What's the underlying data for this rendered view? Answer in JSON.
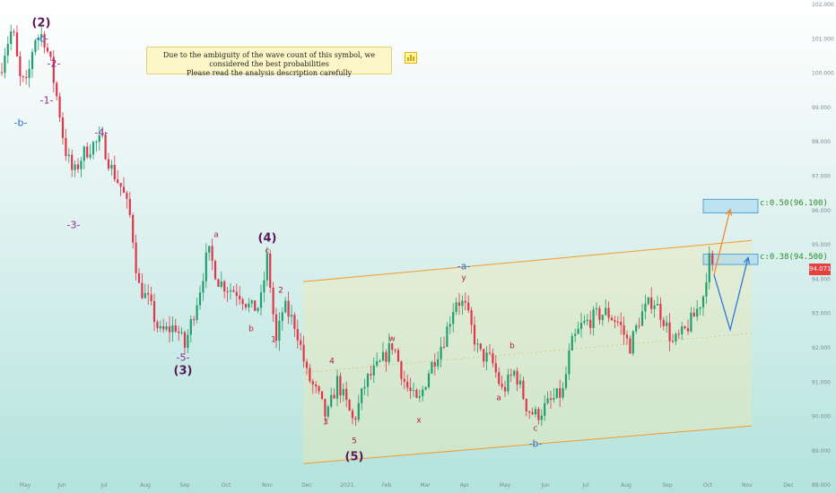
{
  "note": {
    "line1": "Due to the ambiguity of the wave count of this symbol, we considered the best probabilities",
    "line2": "Please read the analysis description carefully"
  },
  "targets": {
    "t1": "c:0.50(96.100)",
    "t2": "c:0.38(94.500)"
  },
  "last_price": "94.071",
  "wave_labels": {
    "w2": "(2)",
    "w2c": "-c-",
    "w2_2": "-2-",
    "w2_1": "-1-",
    "w2b": "-b-",
    "w4m": "-4-",
    "w3m": "-3-",
    "w5m": "-5-",
    "w3": "(3)",
    "w4": "(4)",
    "w4a": "a",
    "w4b": "b",
    "w4c": "c",
    "s1": "1",
    "s2": "2",
    "s3": "3",
    "s4": "4",
    "s5": "5",
    "w5": "(5)",
    "wa": "-a-",
    "wy": "y",
    "ww": "w",
    "wx": "x",
    "cb": "b",
    "ca": "a",
    "cc": "c",
    "wb": "-b-"
  },
  "chart_data": {
    "type": "candlestick",
    "x_ticks": [
      "May",
      "Jun",
      "Jul",
      "Aug",
      "Sep",
      "Oct",
      "Nov",
      "Dec",
      "2021",
      "Feb",
      "Mar",
      "Apr",
      "May",
      "Jun",
      "Jul",
      "Aug",
      "Sep",
      "Oct",
      "Nov",
      "Dec"
    ],
    "y_ticks": [
      "102.000",
      "101.000",
      "100.000",
      "99.000",
      "98.000",
      "97.000",
      "96.000",
      "95.000",
      "94.000",
      "93.000",
      "92.000",
      "91.000",
      "90.000",
      "89.000",
      "88.000"
    ],
    "ylim": [
      88,
      102
    ],
    "colors": {
      "up": "#1f9e6e",
      "down": "#e0364a",
      "channel": "#f29b2b",
      "projection_up": "#f08a2d",
      "projection_down": "#2f7ad9",
      "target_box": "#9fd3f0"
    },
    "series": [
      {
        "name": "price path",
        "points": [
          [
            0,
            100.0
          ],
          [
            6,
            100.7
          ],
          [
            14,
            101.3
          ],
          [
            22,
            99.8
          ],
          [
            30,
            99.6
          ],
          [
            38,
            101.0
          ],
          [
            48,
            101.1
          ],
          [
            56,
            100.3
          ],
          [
            66,
            98.9
          ],
          [
            72,
            97.8
          ],
          [
            82,
            97.0
          ],
          [
            92,
            97.6
          ],
          [
            104,
            97.9
          ],
          [
            114,
            98.0
          ],
          [
            124,
            97.2
          ],
          [
            136,
            96.6
          ],
          [
            146,
            95.7
          ],
          [
            154,
            93.8
          ],
          [
            166,
            93.3
          ],
          [
            178,
            92.4
          ],
          [
            196,
            92.6
          ],
          [
            206,
            92.0
          ],
          [
            222,
            93.6
          ],
          [
            232,
            94.8
          ],
          [
            244,
            93.9
          ],
          [
            256,
            93.7
          ],
          [
            266,
            93.6
          ],
          [
            280,
            93.1
          ],
          [
            290,
            93.2
          ],
          [
            298,
            94.6
          ],
          [
            308,
            92.1
          ],
          [
            316,
            93.2
          ],
          [
            330,
            92.6
          ],
          [
            342,
            91.2
          ],
          [
            356,
            90.5
          ],
          [
            364,
            89.9
          ],
          [
            376,
            91.0
          ],
          [
            394,
            89.8
          ],
          [
            408,
            91.0
          ],
          [
            424,
            91.5
          ],
          [
            438,
            92.1
          ],
          [
            452,
            90.9
          ],
          [
            466,
            90.3
          ],
          [
            478,
            91.3
          ],
          [
            496,
            92.3
          ],
          [
            508,
            93.4
          ],
          [
            518,
            93.2
          ],
          [
            534,
            91.8
          ],
          [
            548,
            91.6
          ],
          [
            560,
            90.7
          ],
          [
            574,
            91.3
          ],
          [
            588,
            90.2
          ],
          [
            598,
            90.0
          ],
          [
            614,
            90.4
          ],
          [
            628,
            90.7
          ],
          [
            636,
            92.0
          ],
          [
            648,
            92.6
          ],
          [
            664,
            92.9
          ],
          [
            676,
            93.0
          ],
          [
            690,
            92.7
          ],
          [
            702,
            92.0
          ],
          [
            714,
            92.9
          ],
          [
            728,
            93.4
          ],
          [
            740,
            92.8
          ],
          [
            750,
            92.1
          ],
          [
            762,
            92.4
          ],
          [
            774,
            92.9
          ],
          [
            784,
            93.5
          ],
          [
            790,
            94.6
          ],
          [
            796,
            94.1
          ]
        ]
      },
      {
        "name": "orange projection",
        "points": [
          [
            796,
            94.1
          ],
          [
            814,
            96.0
          ]
        ]
      },
      {
        "name": "blue projection",
        "points": [
          [
            796,
            94.1
          ],
          [
            814,
            92.5
          ],
          [
            834,
            94.6
          ]
        ]
      }
    ],
    "channel": {
      "upper": [
        [
          338,
          93.9
        ],
        [
          838,
          95.1
        ]
      ],
      "lower": [
        [
          338,
          88.6
        ],
        [
          838,
          89.7
        ]
      ]
    },
    "target_boxes": [
      {
        "low": 95.9,
        "high": 96.3
      },
      {
        "low": 94.4,
        "high": 94.7
      }
    ]
  }
}
